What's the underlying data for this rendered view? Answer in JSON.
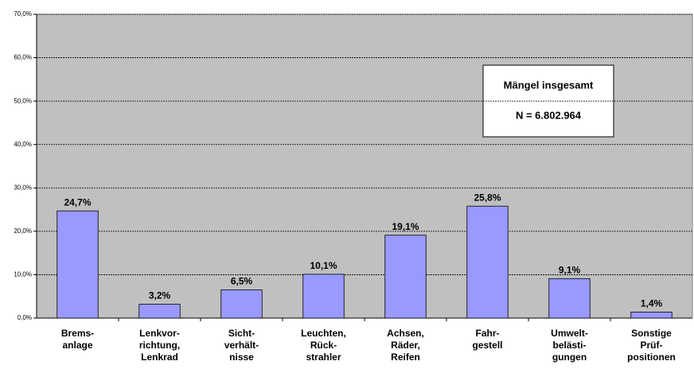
{
  "chart_data": {
    "type": "bar",
    "categories": [
      [
        "Brems-",
        "anlage"
      ],
      [
        "Lenkvor-",
        "richtung,",
        "Lenkrad"
      ],
      [
        "Sicht-",
        "verhält-",
        "nisse"
      ],
      [
        "Leuchten,",
        "Rück-",
        "strahler"
      ],
      [
        "Achsen,",
        "Räder,",
        "Reifen"
      ],
      [
        "Fahr-",
        "gestell"
      ],
      [
        "Umwelt-",
        "belästi-",
        "gungen"
      ],
      [
        "Sonstige",
        "Prüf-",
        "positionen"
      ]
    ],
    "values": [
      24.7,
      3.2,
      6.5,
      10.1,
      19.1,
      25.8,
      9.1,
      1.4
    ],
    "value_labels": [
      "24,7%",
      "3,2%",
      "6,5%",
      "10,1%",
      "19,1%",
      "25,8%",
      "9,1%",
      "1,4%"
    ],
    "color": "#9999ff",
    "ylim": [
      0,
      70
    ],
    "yticks": [
      {
        "value": 0,
        "label": "0,0%"
      },
      {
        "value": 10,
        "label": "10,0%"
      },
      {
        "value": 20,
        "label": "20,0%"
      },
      {
        "value": 30,
        "label": "30,0%"
      },
      {
        "value": 40,
        "label": "40,0%"
      },
      {
        "value": 50,
        "label": "50,0%"
      },
      {
        "value": 60,
        "label": "60,0%"
      },
      {
        "value": 70,
        "label": "70,0%"
      }
    ],
    "grid": true,
    "annotation": {
      "title": "Mängel insgesamt",
      "text": "N = 6.802.964"
    }
  }
}
